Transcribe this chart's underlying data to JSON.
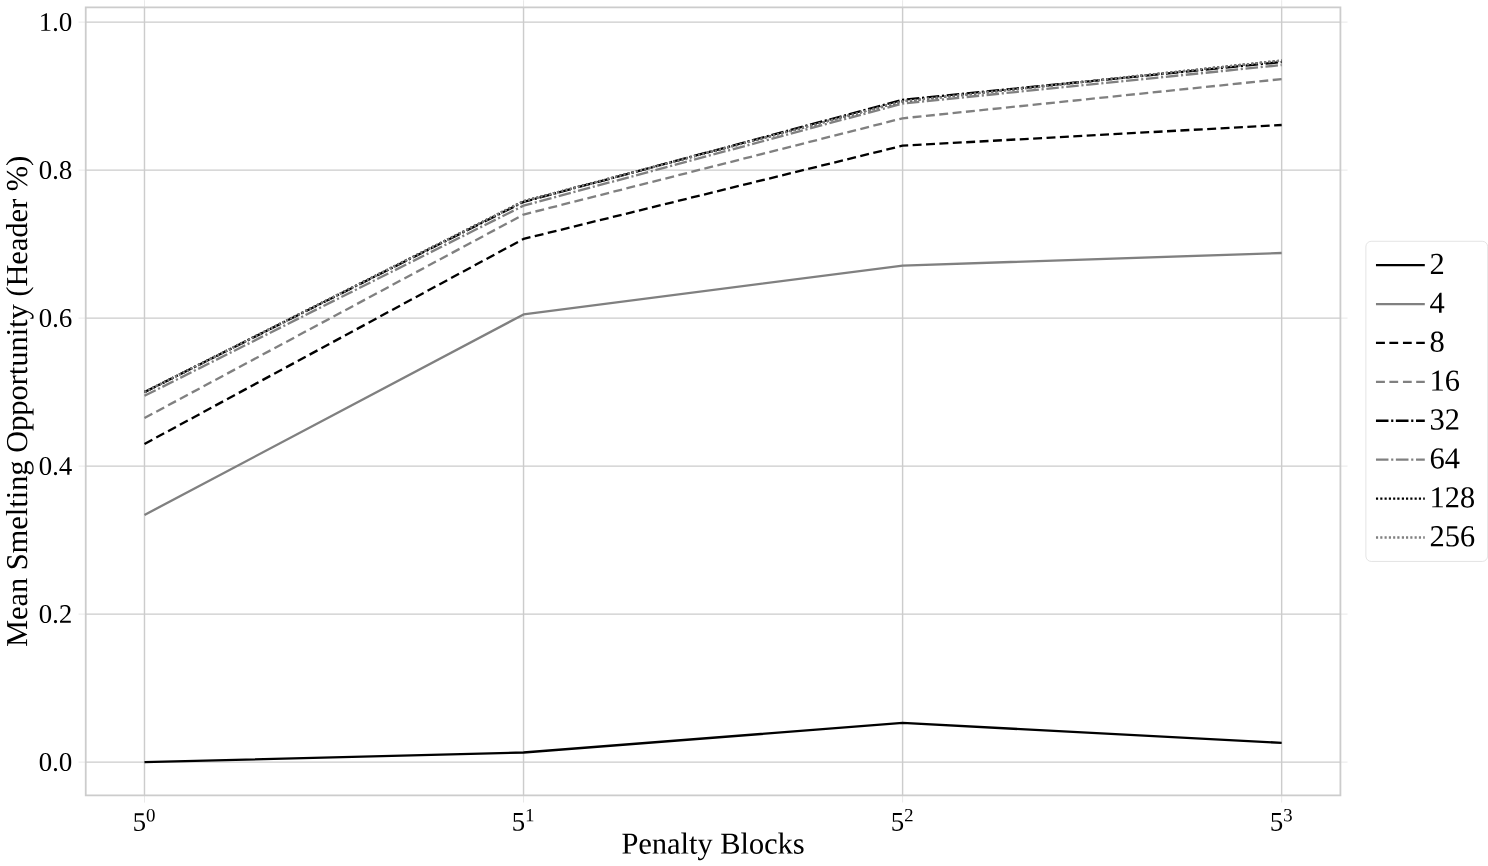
{
  "chart_data": {
    "type": "line",
    "xlabel": "Penalty Blocks",
    "ylabel": "Mean Smelting Opportunity (Header %)",
    "categories": [
      "5$^{0}$",
      "5$^{1}$",
      "5$^{2}$",
      "5$^{3}$"
    ],
    "grid": true,
    "legend": "right",
    "marker": "none",
    "ylim": [
      -0.045,
      1.02
    ],
    "yticks": [
      {
        "value": 0,
        "label": "0.0"
      },
      {
        "value": 0.2,
        "label": "0.2"
      },
      {
        "value": 0.4,
        "label": "0.4"
      },
      {
        "value": 0.6,
        "label": "0.6"
      },
      {
        "value": 0.8,
        "label": "0.8"
      },
      {
        "value": 1,
        "label": "1.0"
      }
    ],
    "series": [
      {
        "name": "2",
        "color": "#000000",
        "line_style": "solid",
        "values": [
          0.0,
          0.013,
          0.053,
          0.026
        ]
      },
      {
        "name": "4",
        "color": "#808080",
        "line_style": "solid",
        "values": [
          0.334,
          0.605,
          0.671,
          0.688
        ]
      },
      {
        "name": "8",
        "color": "#000000",
        "line_style": "dashed",
        "values": [
          0.43,
          0.707,
          0.833,
          0.861
        ]
      },
      {
        "name": "16",
        "color": "#808080",
        "line_style": "dashed",
        "values": [
          0.465,
          0.74,
          0.87,
          0.923
        ]
      },
      {
        "name": "32",
        "color": "#000000",
        "line_style": "dashdot",
        "values": [
          0.5,
          0.757,
          0.895,
          0.946
        ]
      },
      {
        "name": "64",
        "color": "#808080",
        "line_style": "dashdot",
        "values": [
          0.495,
          0.752,
          0.89,
          0.942
        ]
      },
      {
        "name": "128",
        "color": "#000000",
        "line_style": "dotted",
        "values": [
          0.5,
          0.758,
          0.893,
          0.948
        ]
      },
      {
        "name": "256",
        "color": "#808080",
        "line_style": "dotted",
        "values": [
          0.5,
          0.758,
          0.893,
          0.948
        ]
      }
    ]
  }
}
